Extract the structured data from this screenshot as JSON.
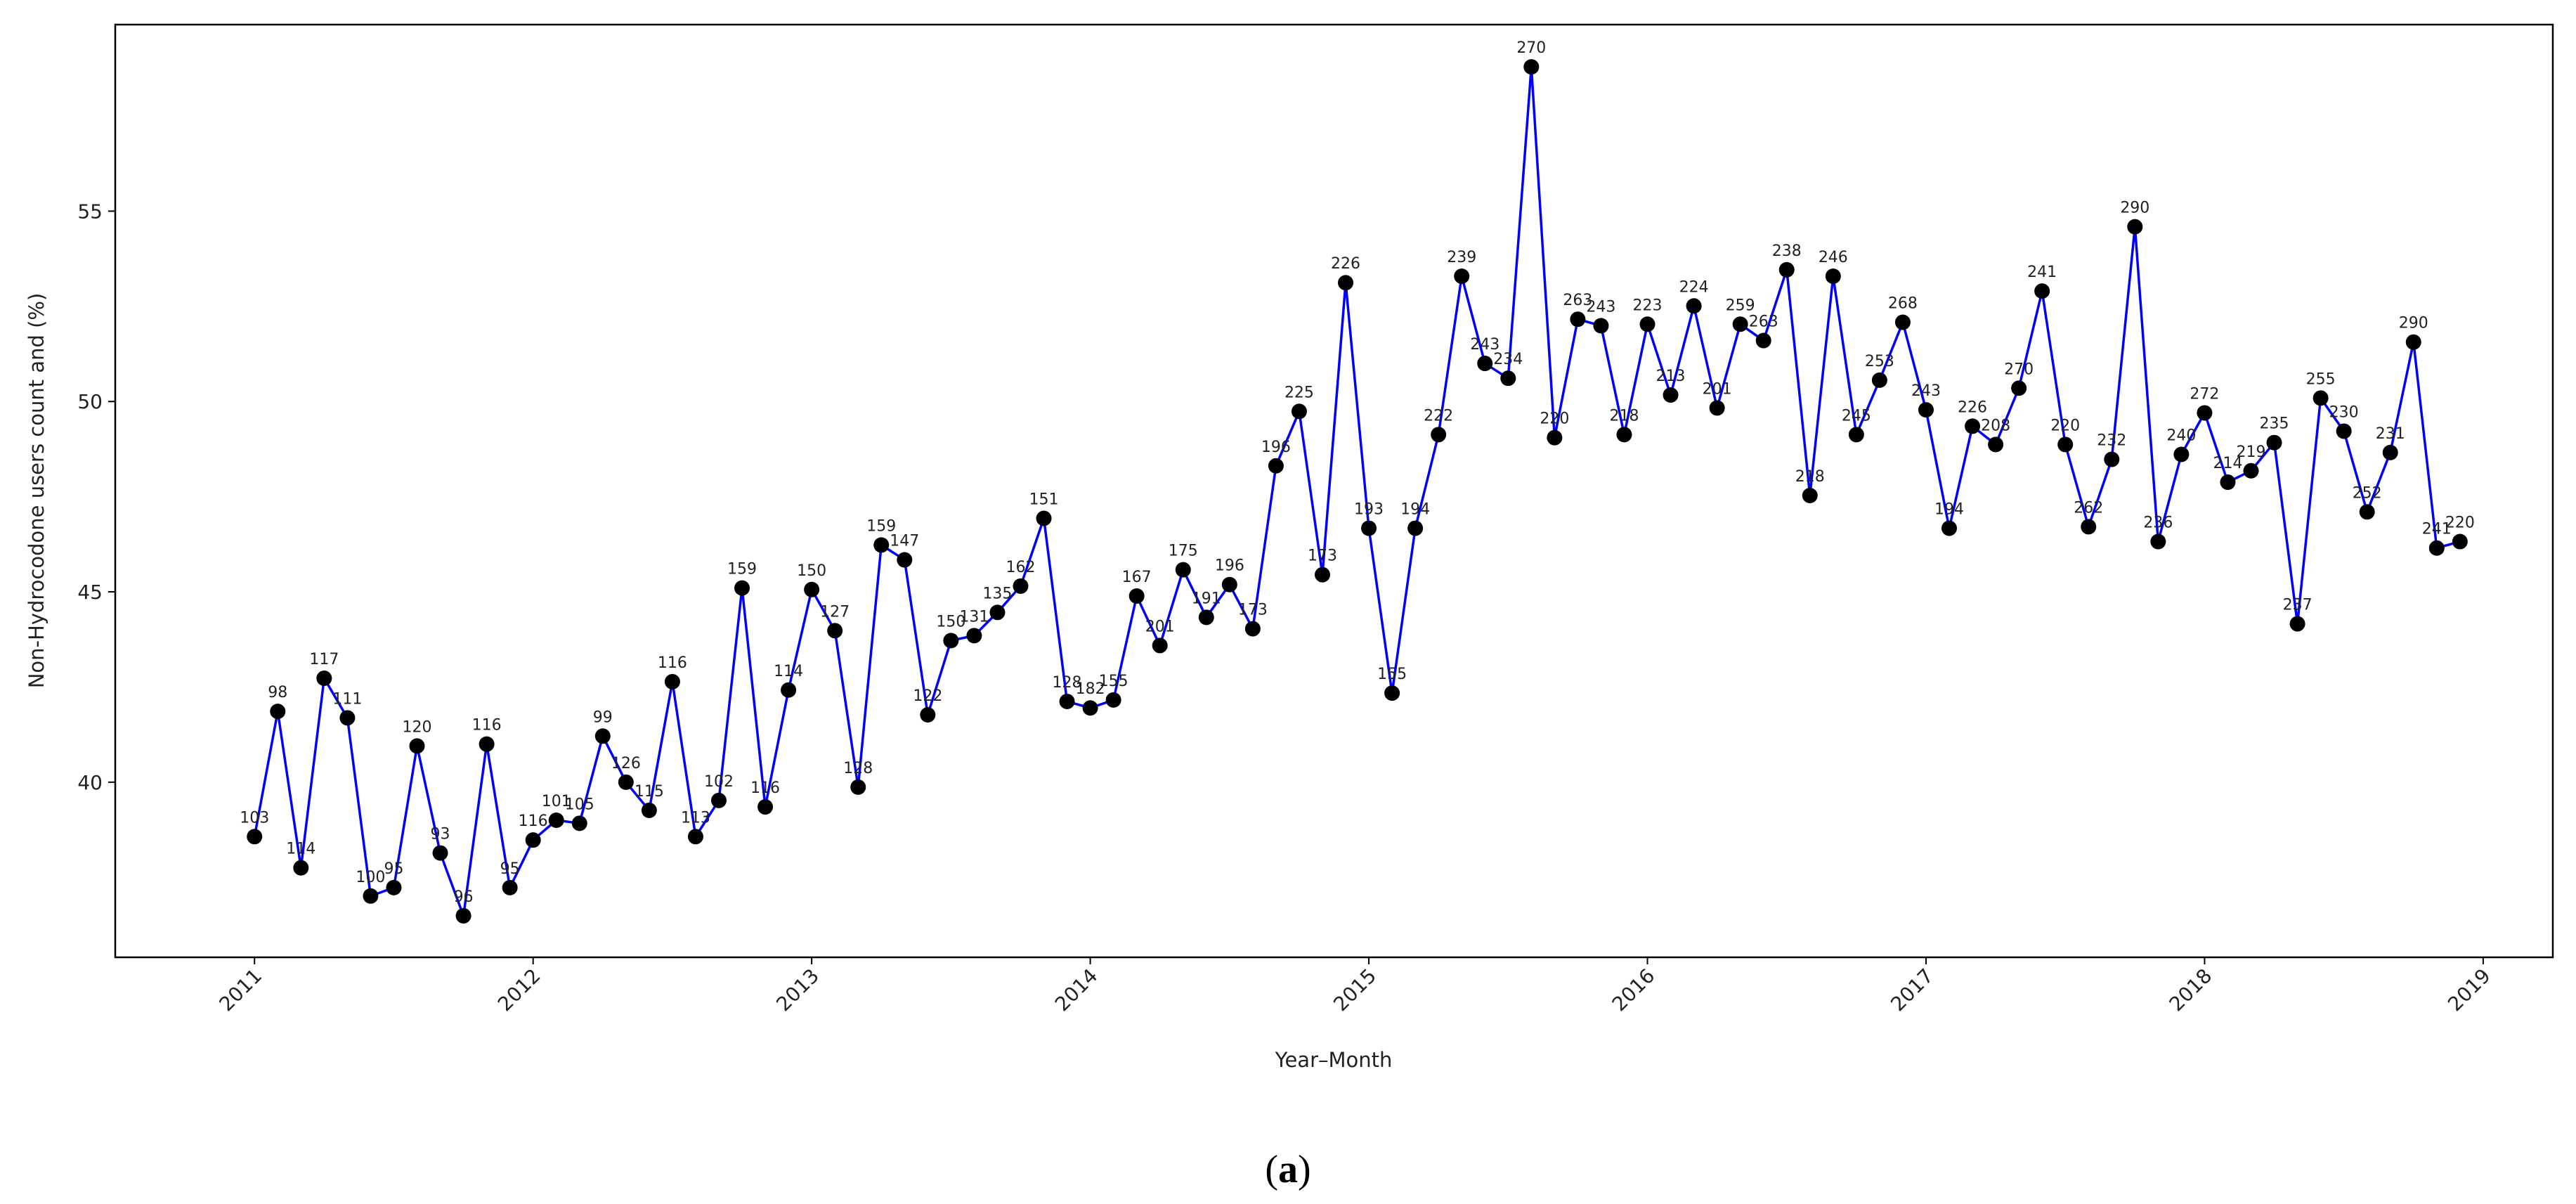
{
  "chart_data": {
    "type": "line",
    "xlabel": "Year–Month",
    "ylabel": "Non-Hydrocodone users count and (%)",
    "x_tick_labels": [
      "2011",
      "2012",
      "2013",
      "2014",
      "2015",
      "2016",
      "2017",
      "2018",
      "2019"
    ],
    "y_tick_labels": [
      "40",
      "45",
      "50",
      "55"
    ],
    "y_ticks": [
      40,
      45,
      50,
      55
    ],
    "xlim": [
      "2010-07",
      "2019-04"
    ],
    "ylim": [
      35.4,
      59.9
    ],
    "grid": false,
    "line_color": "#0000ff",
    "marker_color": "#000000",
    "x": [
      "2011-01",
      "2011-02",
      "2011-03",
      "2011-04",
      "2011-05",
      "2011-06",
      "2011-07",
      "2011-08",
      "2011-09",
      "2011-10",
      "2011-11",
      "2011-12",
      "2012-01",
      "2012-02",
      "2012-03",
      "2012-04",
      "2012-05",
      "2012-06",
      "2012-07",
      "2012-08",
      "2012-09",
      "2012-10",
      "2012-11",
      "2012-12",
      "2013-01",
      "2013-02",
      "2013-03",
      "2013-04",
      "2013-05",
      "2013-06",
      "2013-07",
      "2013-08",
      "2013-09",
      "2013-10",
      "2013-11",
      "2013-12",
      "2014-01",
      "2014-02",
      "2014-03",
      "2014-04",
      "2014-05",
      "2014-06",
      "2014-07",
      "2014-08",
      "2014-09",
      "2014-10",
      "2014-11",
      "2014-12",
      "2015-01",
      "2015-02",
      "2015-03",
      "2015-04",
      "2015-05",
      "2015-06",
      "2015-07",
      "2015-08",
      "2015-09",
      "2015-10",
      "2015-11",
      "2015-12",
      "2016-01",
      "2016-02",
      "2016-03",
      "2016-04",
      "2016-05",
      "2016-06",
      "2016-07",
      "2016-08",
      "2016-09",
      "2016-10",
      "2016-11",
      "2016-12",
      "2017-01",
      "2017-02",
      "2017-03",
      "2017-04",
      "2017-05",
      "2017-06",
      "2017-07",
      "2017-08",
      "2017-09",
      "2017-10",
      "2017-11",
      "2017-12",
      "2018-01",
      "2018-02",
      "2018-03",
      "2018-04",
      "2018-05",
      "2018-06",
      "2018-07",
      "2018-08",
      "2018-09",
      "2018-10",
      "2018-11",
      "2018-12"
    ],
    "y": [
      38.57,
      41.86,
      37.75,
      42.73,
      41.69,
      37.01,
      37.23,
      40.95,
      38.14,
      36.49,
      41.0,
      37.23,
      38.48,
      39.0,
      38.92,
      41.21,
      40.0,
      39.26,
      42.64,
      38.57,
      39.52,
      45.1,
      39.35,
      42.42,
      45.06,
      43.98,
      39.87,
      46.23,
      45.84,
      41.77,
      43.72,
      43.85,
      44.46,
      45.15,
      46.93,
      42.12,
      41.95,
      42.16,
      44.89,
      43.59,
      45.58,
      44.33,
      45.19,
      44.03,
      48.31,
      49.74,
      45.45,
      53.12,
      46.67,
      42.34,
      46.67,
      49.13,
      53.29,
      51.0,
      50.61,
      58.79,
      49.05,
      52.16,
      51.99,
      49.13,
      52.03,
      50.17,
      52.51,
      49.83,
      52.03,
      51.6,
      53.46,
      47.53,
      53.29,
      49.13,
      50.56,
      52.08,
      49.78,
      46.67,
      49.35,
      48.87,
      50.35,
      52.9,
      48.87,
      46.71,
      48.48,
      54.59,
      46.32,
      48.61,
      49.7,
      47.88,
      48.18,
      48.92,
      44.16,
      50.09,
      49.22,
      47.1,
      48.66,
      51.56,
      46.15,
      46.32
    ],
    "point_labels": [
      "103",
      "98",
      "114",
      "117",
      "111",
      "100",
      "95",
      "120",
      "93",
      "96",
      "116",
      "95",
      "116",
      "101",
      "105",
      "99",
      "126",
      "115",
      "116",
      "113",
      "102",
      "159",
      "116",
      "114",
      "150",
      "127",
      "128",
      "159",
      "147",
      "122",
      "150",
      "131",
      "135",
      "162",
      "151",
      "128",
      "182",
      "155",
      "167",
      "201",
      "175",
      "191",
      "196",
      "173",
      "196",
      "225",
      "173",
      "226",
      "193",
      "155",
      "194",
      "222",
      "239",
      "243",
      "234",
      "270",
      "220",
      "263",
      "243",
      "218",
      "223",
      "213",
      "224",
      "201",
      "259",
      "263",
      "238",
      "218",
      "246",
      "245",
      "253",
      "268",
      "243",
      "194",
      "226",
      "208",
      "270",
      "241",
      "220",
      "262",
      "232",
      "290",
      "236",
      "240",
      "272",
      "214",
      "219",
      "235",
      "237",
      "255",
      "230",
      "252",
      "231",
      "290",
      "241",
      "220"
    ]
  },
  "caption": {
    "label": "a",
    "open": "(",
    "close": ")"
  }
}
